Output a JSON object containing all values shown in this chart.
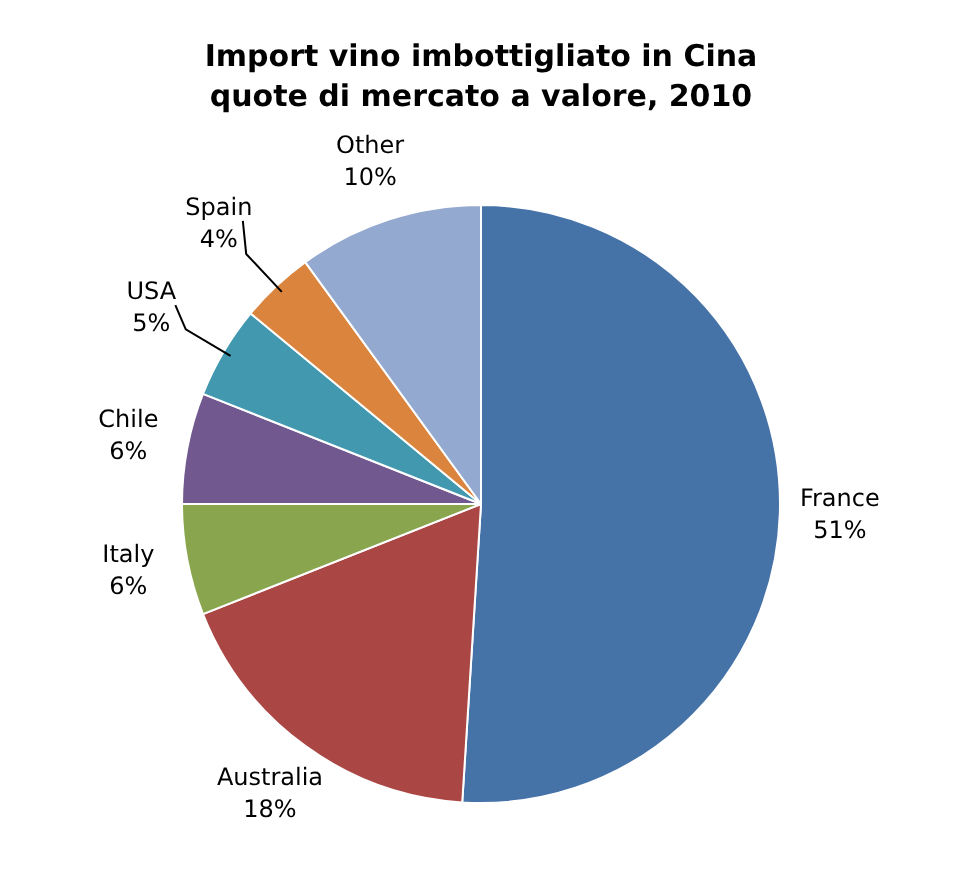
{
  "chart_data": {
    "type": "pie",
    "title": "Import vino imbottigliato in Cina",
    "subtitle": "quote di mercato a valore, 2010",
    "categories": [
      "France",
      "Australia",
      "Italy",
      "Chile",
      "USA",
      "Spain",
      "Other"
    ],
    "values": [
      51,
      18,
      6,
      6,
      5,
      4,
      10
    ],
    "colors": [
      "#4572a7",
      "#aa4643",
      "#89a54e",
      "#71588f",
      "#4198af",
      "#db843d",
      "#93a9cf"
    ],
    "value_labels": [
      "51%",
      "18%",
      "6%",
      "6%",
      "5%",
      "4%",
      "10%"
    ],
    "legend": false
  }
}
